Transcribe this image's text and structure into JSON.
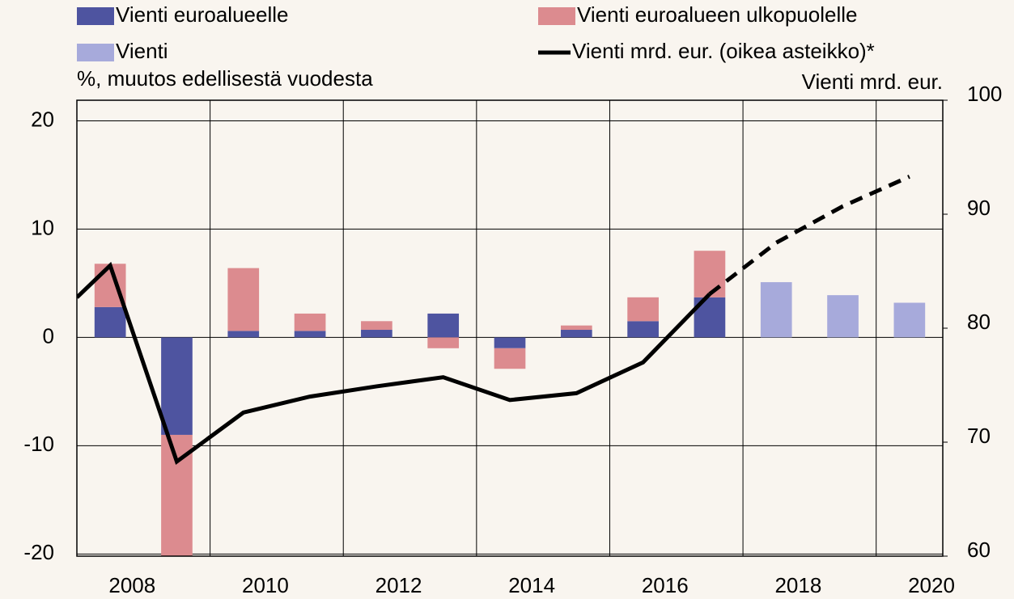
{
  "chart_data": {
    "type": "bar",
    "legend": "top",
    "ylabel": "%, muutos edellisestä vuodesta",
    "y2label": "Vienti mrd. eur.",
    "xlim": [
      2007,
      2020
    ],
    "xticks": [
      2008,
      2010,
      2012,
      2014,
      2016,
      2018,
      2020
    ],
    "ylim": [
      -20.2,
      21.9
    ],
    "yticks": [
      -20,
      -10,
      0,
      10,
      20
    ],
    "y2lim": [
      60,
      100
    ],
    "y2ticks": [
      60,
      70,
      80,
      90,
      100
    ],
    "grid": true,
    "stacked": true,
    "x": [
      2007.5,
      2008.5,
      2009.5,
      2010.5,
      2011.5,
      2012.5,
      2013.5,
      2014.5,
      2015.5,
      2016.5,
      2017.5,
      2018.5,
      2019.5
    ],
    "series": [
      {
        "name": "Vienti euroalueelle",
        "color": "#4e54a0",
        "values": [
          2.8,
          -9,
          0.6,
          0.6,
          0.7,
          2.2,
          -1.0,
          0.7,
          1.5,
          3.7,
          null,
          null,
          null
        ]
      },
      {
        "name": "Vienti euroalueen ulkopuolelle",
        "color": "#dc8b8f",
        "values": [
          4.0,
          -11.2,
          5.8,
          1.6,
          0.8,
          -1.0,
          -1.9,
          0.4,
          2.2,
          4.3,
          null,
          null,
          null
        ]
      },
      {
        "name": "Vienti",
        "color": "#a7aadb",
        "values": [
          null,
          null,
          null,
          null,
          null,
          null,
          null,
          null,
          null,
          null,
          5.1,
          3.9,
          3.2
        ]
      },
      {
        "name": "Vienti mrd. eur. (oikea asteikko)*",
        "type": "line",
        "axis": "y2",
        "color": "#000000",
        "dashed_from": 2016.5,
        "x": [
          2007,
          2007.5,
          2008.5,
          2009.5,
          2010.5,
          2011.5,
          2012.5,
          2013.5,
          2014.5,
          2015.5,
          2016.5,
          2017.5,
          2018.5,
          2019.5
        ],
        "values": [
          82.7,
          85.5,
          68.3,
          72.6,
          74.0,
          74.9,
          75.7,
          73.7,
          74.3,
          77.0,
          83.0,
          87.5,
          90.7,
          93.3
        ]
      }
    ]
  }
}
